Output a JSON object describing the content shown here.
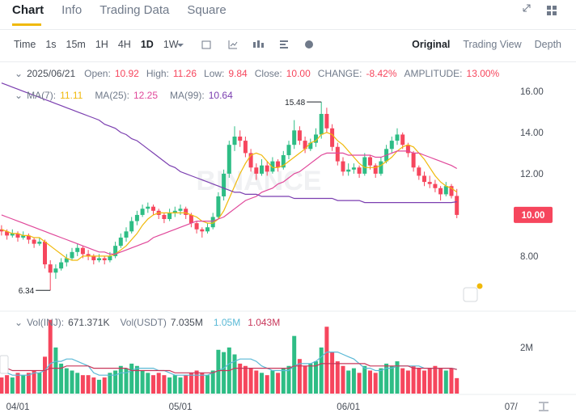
{
  "tabs": [
    "Chart",
    "Info",
    "Trading Data",
    "Square"
  ],
  "timeframes": [
    "Time",
    "1s",
    "15m",
    "1H",
    "4H",
    "1D",
    "1W"
  ],
  "views": [
    "Original",
    "Trading View",
    "Depth"
  ],
  "chart_data": {
    "type": "candlestick",
    "watermark": "BINANCE",
    "info": {
      "date": "2025/06/21",
      "fields": [
        {
          "label": "Open:",
          "value": "10.92"
        },
        {
          "label": "High:",
          "value": "11.26"
        },
        {
          "label": "Low:",
          "value": "9.84"
        },
        {
          "label": "Close:",
          "value": "10.00"
        },
        {
          "label": "CHANGE:",
          "value": "-8.42%"
        },
        {
          "label": "AMPLITUDE:",
          "value": "13.00%"
        }
      ]
    },
    "ylim": [
      5.33,
      17.29
    ],
    "yticks": [
      {
        "value": 8,
        "label": "8.00"
      },
      {
        "value": 12,
        "label": "12.00"
      },
      {
        "value": 14,
        "label": "14.00"
      },
      {
        "value": 16,
        "label": "16.00"
      }
    ],
    "last_price": {
      "value": 10,
      "label": "10.00"
    },
    "high_label": "15.48",
    "low_label": "6.34",
    "xticks": [
      {
        "value": 3,
        "label": "04/01"
      },
      {
        "value": 33,
        "label": "05/01"
      },
      {
        "value": 64,
        "label": "06/01"
      },
      {
        "value": 94,
        "label": "07/"
      }
    ],
    "up_color": "#2ebd85",
    "down_color": "#f6465d",
    "candles": [
      [
        9.3,
        9.5,
        9.0,
        9.2
      ],
      [
        9.2,
        9.3,
        8.8,
        9.0
      ],
      [
        9.0,
        9.3,
        8.9,
        9.1
      ],
      [
        9.1,
        9.2,
        8.7,
        8.9
      ],
      [
        8.9,
        9.2,
        8.8,
        9.0
      ],
      [
        9.0,
        9.1,
        8.6,
        8.8
      ],
      [
        8.8,
        8.9,
        8.4,
        8.6
      ],
      [
        8.6,
        8.9,
        8.5,
        8.7
      ],
      [
        8.7,
        8.8,
        7.4,
        7.6
      ],
      [
        7.6,
        7.8,
        6.34,
        7.2
      ],
      [
        7.2,
        7.6,
        6.9,
        7.4
      ],
      [
        7.4,
        7.9,
        7.3,
        7.7
      ],
      [
        7.7,
        8.1,
        7.5,
        7.9
      ],
      [
        7.9,
        8.4,
        7.8,
        8.2
      ],
      [
        8.2,
        8.6,
        8.0,
        8.4
      ],
      [
        8.4,
        8.5,
        7.9,
        8.1
      ],
      [
        8.1,
        8.3,
        7.8,
        8.0
      ],
      [
        8.0,
        8.1,
        7.6,
        7.8
      ],
      [
        7.8,
        8.1,
        7.7,
        7.9
      ],
      [
        7.9,
        8.0,
        7.6,
        7.8
      ],
      [
        7.8,
        8.2,
        7.7,
        8.0
      ],
      [
        8.0,
        8.7,
        7.9,
        8.5
      ],
      [
        8.5,
        9.1,
        8.4,
        8.9
      ],
      [
        8.9,
        9.4,
        8.7,
        9.2
      ],
      [
        9.2,
        9.9,
        9.1,
        9.7
      ],
      [
        9.7,
        10.2,
        9.5,
        10.0
      ],
      [
        10.0,
        10.5,
        9.9,
        10.3
      ],
      [
        10.3,
        10.6,
        10.1,
        10.4
      ],
      [
        10.4,
        10.5,
        10.0,
        10.2
      ],
      [
        10.2,
        10.3,
        9.8,
        10.0
      ],
      [
        10.0,
        10.1,
        9.6,
        9.8
      ],
      [
        9.8,
        10.3,
        9.7,
        10.1
      ],
      [
        10.1,
        10.4,
        9.9,
        10.2
      ],
      [
        10.2,
        10.5,
        10.0,
        10.3
      ],
      [
        10.3,
        10.4,
        9.8,
        10.0
      ],
      [
        10.0,
        10.1,
        9.4,
        9.6
      ],
      [
        9.6,
        9.7,
        9.1,
        9.3
      ],
      [
        9.3,
        9.4,
        8.9,
        9.2
      ],
      [
        9.2,
        9.6,
        9.1,
        9.4
      ],
      [
        9.4,
        10.1,
        9.3,
        9.9
      ],
      [
        9.9,
        11.1,
        9.8,
        10.9
      ],
      [
        10.9,
        12.2,
        10.7,
        12.0
      ],
      [
        12.0,
        13.6,
        11.8,
        13.4
      ],
      [
        13.4,
        14.3,
        13.1,
        13.8
      ],
      [
        13.8,
        14.1,
        13.3,
        13.6
      ],
      [
        13.6,
        13.8,
        12.8,
        13.0
      ],
      [
        13.0,
        13.2,
        12.1,
        12.3
      ],
      [
        12.3,
        12.5,
        11.7,
        12.0
      ],
      [
        12.0,
        12.7,
        11.9,
        12.4
      ],
      [
        12.4,
        12.6,
        11.9,
        12.1
      ],
      [
        12.1,
        12.8,
        12.0,
        12.6
      ],
      [
        12.6,
        12.7,
        12.1,
        12.3
      ],
      [
        12.3,
        13.1,
        12.2,
        12.9
      ],
      [
        12.9,
        13.6,
        12.7,
        13.4
      ],
      [
        13.4,
        14.6,
        13.2,
        14.1
      ],
      [
        14.1,
        14.3,
        13.4,
        13.6
      ],
      [
        13.6,
        13.8,
        13.0,
        13.2
      ],
      [
        13.2,
        13.7,
        13.1,
        13.5
      ],
      [
        13.5,
        14.2,
        13.3,
        13.9
      ],
      [
        13.9,
        15.48,
        13.7,
        14.9
      ],
      [
        14.9,
        15.2,
        14.0,
        14.2
      ],
      [
        14.2,
        14.4,
        13.1,
        13.3
      ],
      [
        13.3,
        13.5,
        12.4,
        12.6
      ],
      [
        12.6,
        12.8,
        11.9,
        12.1
      ],
      [
        12.1,
        12.5,
        11.9,
        12.2
      ],
      [
        12.2,
        12.5,
        12.0,
        12.3
      ],
      [
        12.3,
        12.4,
        11.8,
        12.0
      ],
      [
        12.0,
        13.0,
        11.9,
        12.8
      ],
      [
        12.8,
        12.9,
        12.2,
        12.4
      ],
      [
        12.4,
        12.5,
        11.8,
        12.0
      ],
      [
        12.0,
        12.8,
        11.9,
        12.6
      ],
      [
        12.6,
        13.4,
        12.5,
        13.2
      ],
      [
        13.2,
        13.8,
        13.0,
        13.6
      ],
      [
        13.6,
        14.2,
        13.4,
        13.9
      ],
      [
        13.9,
        14.0,
        13.2,
        13.4
      ],
      [
        13.4,
        13.5,
        12.8,
        13.0
      ],
      [
        13.0,
        13.1,
        12.1,
        12.3
      ],
      [
        12.3,
        12.4,
        11.7,
        11.9
      ],
      [
        11.9,
        12.1,
        11.4,
        11.6
      ],
      [
        11.6,
        11.9,
        11.3,
        11.5
      ],
      [
        11.5,
        11.7,
        11.1,
        11.3
      ],
      [
        11.3,
        11.4,
        10.7,
        11.0
      ],
      [
        11.0,
        11.6,
        10.9,
        11.4
      ],
      [
        11.4,
        11.5,
        10.8,
        10.92
      ],
      [
        10.92,
        11.26,
        9.84,
        10.0
      ]
    ],
    "ma": [
      {
        "name": "MA(7):",
        "label": "11.11",
        "color": "#f0b90b",
        "values": [
          9.3,
          9.2,
          9.1,
          9.1,
          9.0,
          9.0,
          8.9,
          8.9,
          8.7,
          8.5,
          8.3,
          8.1,
          7.9,
          7.8,
          7.8,
          8.0,
          8.0,
          8.0,
          8.0,
          8.0,
          8.0,
          8.1,
          8.3,
          8.5,
          8.8,
          9.1,
          9.5,
          9.8,
          10.0,
          10.1,
          10.1,
          10.1,
          10.1,
          10.1,
          10.1,
          10.0,
          9.9,
          9.7,
          9.6,
          9.6,
          9.8,
          10.2,
          10.8,
          11.4,
          12.0,
          12.5,
          12.9,
          13.0,
          12.9,
          12.6,
          12.3,
          12.3,
          12.4,
          12.6,
          12.8,
          13.0,
          13.2,
          13.5,
          13.6,
          13.9,
          14.0,
          13.9,
          13.6,
          13.4,
          13.1,
          12.8,
          12.5,
          12.3,
          12.3,
          12.3,
          12.4,
          12.6,
          12.8,
          13.1,
          13.3,
          13.4,
          13.3,
          13.0,
          12.7,
          12.3,
          11.9,
          11.6,
          11.4,
          11.3,
          11.11
        ]
      },
      {
        "name": "MA(25):",
        "label": "12.25",
        "color": "#e0489a",
        "values": [
          10.0,
          9.9,
          9.8,
          9.7,
          9.6,
          9.5,
          9.4,
          9.3,
          9.2,
          9.1,
          9.0,
          8.9,
          8.8,
          8.7,
          8.6,
          8.5,
          8.4,
          8.3,
          8.2,
          8.2,
          8.1,
          8.1,
          8.2,
          8.3,
          8.4,
          8.5,
          8.6,
          8.7,
          8.9,
          9.0,
          9.1,
          9.2,
          9.3,
          9.4,
          9.5,
          9.6,
          9.7,
          9.7,
          9.7,
          9.7,
          9.8,
          9.9,
          10.1,
          10.3,
          10.5,
          10.7,
          10.8,
          10.9,
          11.1,
          11.2,
          11.3,
          11.5,
          11.6,
          11.8,
          12.0,
          12.1,
          12.3,
          12.5,
          12.7,
          12.9,
          13.0,
          13.0,
          13.0,
          13.0,
          12.9,
          12.9,
          12.9,
          12.9,
          12.9,
          12.8,
          12.8,
          12.9,
          13.0,
          13.1,
          13.1,
          13.1,
          13.0,
          13.0,
          12.9,
          12.8,
          12.7,
          12.6,
          12.5,
          12.4,
          12.25
        ]
      },
      {
        "name": "MA(99):",
        "label": "10.64",
        "color": "#7b3fb0",
        "values": [
          16.4,
          16.3,
          16.2,
          16.1,
          16.0,
          15.9,
          15.8,
          15.7,
          15.6,
          15.5,
          15.4,
          15.3,
          15.2,
          15.1,
          15.0,
          14.9,
          14.8,
          14.7,
          14.6,
          14.4,
          14.3,
          14.2,
          14.0,
          13.9,
          13.7,
          13.6,
          13.4,
          13.2,
          13.0,
          12.8,
          12.6,
          12.4,
          12.3,
          12.1,
          12.0,
          11.9,
          11.8,
          11.7,
          11.6,
          11.5,
          11.4,
          11.3,
          11.2,
          11.1,
          11.1,
          11.0,
          11.0,
          11.0,
          10.9,
          10.9,
          10.9,
          10.9,
          10.9,
          10.9,
          10.8,
          10.8,
          10.8,
          10.8,
          10.8,
          10.8,
          10.8,
          10.8,
          10.7,
          10.7,
          10.7,
          10.7,
          10.7,
          10.6,
          10.6,
          10.6,
          10.6,
          10.6,
          10.6,
          10.6,
          10.6,
          10.6,
          10.6,
          10.6,
          10.6,
          10.6,
          10.6,
          10.6,
          10.6,
          10.6,
          10.64
        ]
      }
    ],
    "volume": {
      "name": "Vol(INJ):",
      "label": "671.371K",
      "values": [
        0.7,
        0.8,
        0.7,
        0.9,
        0.8,
        0.9,
        1.0,
        0.9,
        1.6,
        3.2,
        2.0,
        1.3,
        1.1,
        1.0,
        0.9,
        0.8,
        0.8,
        0.7,
        0.6,
        0.7,
        0.9,
        1.0,
        1.2,
        1.1,
        1.3,
        1.2,
        1.0,
        0.9,
        0.8,
        0.9,
        0.8,
        0.7,
        0.8,
        0.7,
        0.8,
        0.9,
        1.0,
        0.9,
        0.8,
        1.0,
        1.9,
        1.8,
        2.0,
        1.7,
        1.3,
        1.2,
        1.1,
        1.0,
        0.9,
        0.8,
        1.0,
        0.9,
        1.1,
        1.2,
        2.5,
        1.5,
        1.2,
        1.3,
        1.4,
        2.0,
        2.9,
        1.8,
        1.4,
        1.2,
        1.0,
        1.1,
        0.9,
        1.2,
        1.0,
        0.9,
        1.1,
        1.3,
        1.2,
        1.4,
        1.1,
        1.0,
        1.2,
        1.1,
        1.0,
        1.1,
        1.2,
        1.1,
        1.0,
        1.1,
        0.671371
      ]
    },
    "volume_usdt": {
      "name": "Vol(USDT)",
      "label": "7.035M"
    },
    "vlim": [
      0,
      3.47
    ],
    "vticks": [
      {
        "value": 2,
        "label": "2M"
      }
    ],
    "volume_ma": [
      {
        "label": "1.05M",
        "color": "#5ab9d6",
        "values": [
          0.9,
          0.9,
          0.8,
          0.8,
          0.8,
          0.8,
          0.9,
          0.9,
          1.0,
          1.3,
          1.4,
          1.4,
          1.5,
          1.5,
          1.4,
          1.3,
          1.2,
          0.9,
          0.8,
          0.8,
          0.8,
          0.8,
          0.9,
          0.9,
          1.0,
          1.1,
          1.1,
          1.1,
          1.1,
          1.0,
          1.0,
          0.9,
          0.8,
          0.8,
          0.8,
          0.8,
          0.8,
          0.8,
          0.8,
          0.9,
          1.0,
          1.1,
          1.3,
          1.4,
          1.5,
          1.5,
          1.5,
          1.4,
          1.2,
          1.1,
          1.0,
          1.0,
          1.0,
          1.0,
          1.2,
          1.3,
          1.3,
          1.3,
          1.4,
          1.6,
          1.8,
          1.8,
          1.8,
          1.7,
          1.6,
          1.5,
          1.3,
          1.1,
          1.1,
          1.0,
          1.0,
          1.1,
          1.1,
          1.2,
          1.2,
          1.2,
          1.2,
          1.2,
          1.1,
          1.1,
          1.1,
          1.1,
          1.1,
          1.1,
          1.05
        ]
      },
      {
        "label": "1.043M",
        "color": "#c8375a",
        "values": [
          1.1,
          1.1,
          1.0,
          1.0,
          1.0,
          1.0,
          1.0,
          1.0,
          1.0,
          1.1,
          1.1,
          1.1,
          1.2,
          1.2,
          1.2,
          1.2,
          1.2,
          1.1,
          1.1,
          1.1,
          1.1,
          1.1,
          1.1,
          1.1,
          1.0,
          1.0,
          1.0,
          1.0,
          1.0,
          1.0,
          1.0,
          1.0,
          0.9,
          0.9,
          0.9,
          0.9,
          0.9,
          0.9,
          0.9,
          0.9,
          1.0,
          1.0,
          1.0,
          1.1,
          1.1,
          1.1,
          1.1,
          1.1,
          1.1,
          1.1,
          1.1,
          1.1,
          1.1,
          1.1,
          1.2,
          1.2,
          1.2,
          1.2,
          1.2,
          1.3,
          1.3,
          1.3,
          1.3,
          1.3,
          1.3,
          1.3,
          1.3,
          1.3,
          1.2,
          1.2,
          1.2,
          1.2,
          1.2,
          1.2,
          1.2,
          1.2,
          1.1,
          1.1,
          1.1,
          1.1,
          1.1,
          1.1,
          1.1,
          1.1,
          1.043
        ]
      }
    ]
  }
}
